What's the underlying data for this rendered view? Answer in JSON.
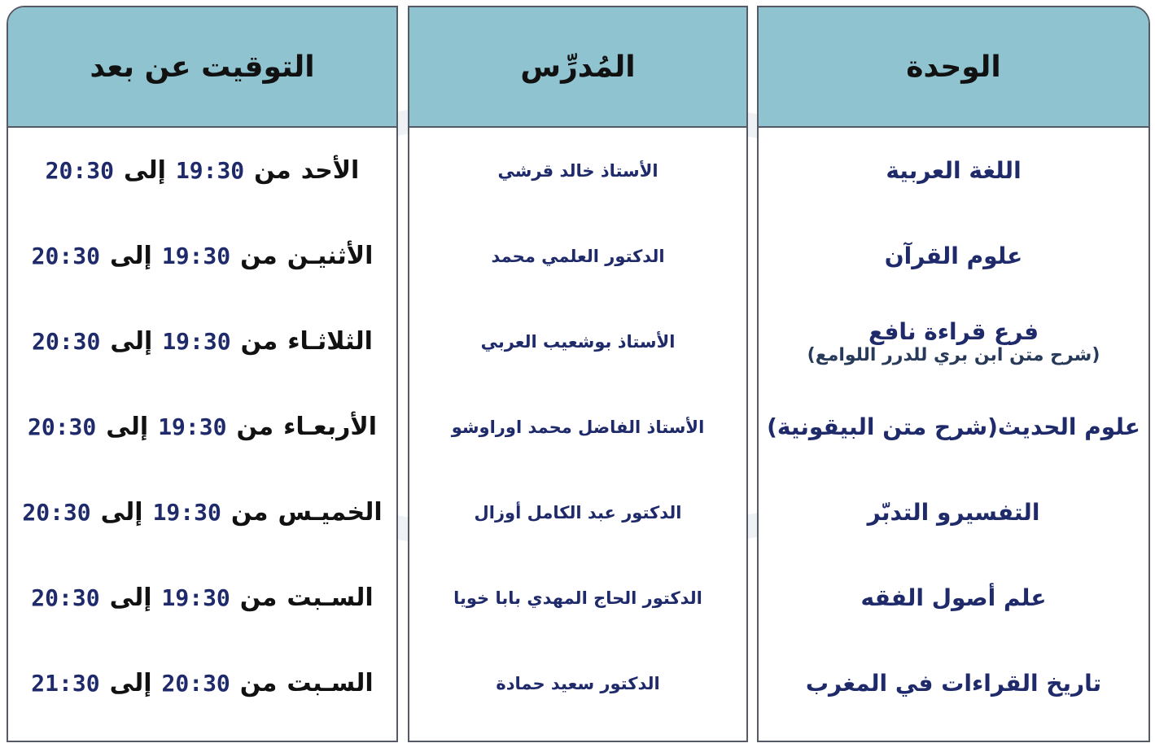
{
  "headers": {
    "time": "التوقيت عن بعد",
    "teacher": "المُدرِّس",
    "unit": "الوحدة"
  },
  "rows": [
    {
      "unit": "اللغة العربية",
      "unit_sub": "",
      "teacher": "الأستاذ خالد  قرشي",
      "day": "الأحد",
      "from": "من",
      "start": "19:30",
      "to": "إلى",
      "end": "20:30"
    },
    {
      "unit": "علوم القرآن",
      "unit_sub": "",
      "teacher": "الدكتور العلمي محمد",
      "day": "الأثنيـن",
      "from": "من",
      "start": "19:30",
      "to": "إلى",
      "end": "20:30"
    },
    {
      "unit": "فرع قراءة نافع",
      "unit_sub": "(شرح متن ابن بري للدرر اللوامع)",
      "teacher": "الأستاذ بوشعيب العربي",
      "day": "الثلاثـاء",
      "from": "من",
      "start": "19:30",
      "to": "إلى",
      "end": "20:30"
    },
    {
      "unit": "علوم الحديث(شرح متن البيقونية)",
      "unit_sub": "",
      "teacher": "الأستاذ الفاضل محمد اوراوشو",
      "day": "الأربعـاء",
      "from": "من",
      "start": "19:30",
      "to": "إلى",
      "end": "20:30"
    },
    {
      "unit": "التفسيرو التدبّر",
      "unit_sub": "",
      "teacher": "الدكتور عبد الكامل أوزال",
      "day": "الخميـس",
      "from": "من",
      "start": "19:30",
      "to": "إلى",
      "end": "20:30"
    },
    {
      "unit": "علم أصول الفقه",
      "unit_sub": "",
      "teacher": "الدكتور الحاج المهدي بابا خويا",
      "day": "السـبت",
      "from": "من",
      "start": "19:30",
      "to": "إلى",
      "end": "20:30"
    },
    {
      "unit": "تاريخ القراءات في المغرب",
      "unit_sub": "",
      "teacher": "الدكتور سعيد حمادة",
      "day": "السـبت",
      "from": "من",
      "start": "20:30",
      "to": "إلى",
      "end": "21:30"
    }
  ],
  "colors": {
    "header_bg": "#8fc3d0",
    "text": "#1f2a6b",
    "border": "#555a66"
  }
}
